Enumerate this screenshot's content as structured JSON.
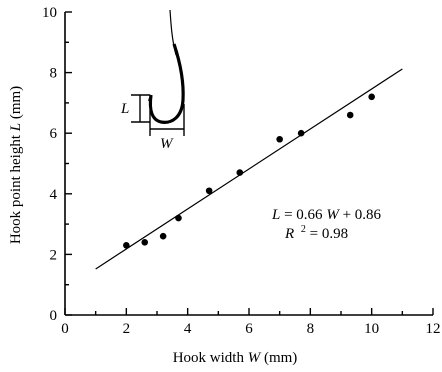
{
  "chart_data": {
    "type": "scatter",
    "xlabel": {
      "prefix": "Hook width ",
      "var": "W",
      "suffix": "  (mm)"
    },
    "ylabel": {
      "prefix": "Hook point height ",
      "var": "L",
      "suffix": "  (mm)"
    },
    "xlim": [
      0,
      12
    ],
    "ylim": [
      0,
      10
    ],
    "xticks": [
      0,
      2,
      4,
      6,
      8,
      10,
      12
    ],
    "yticks": [
      0,
      2,
      4,
      6,
      8,
      10
    ],
    "xtick_labels": [
      "0",
      "2",
      "4",
      "6",
      "8",
      "10",
      "12"
    ],
    "ytick_labels": [
      "0",
      "2",
      "4",
      "6",
      "8",
      "10"
    ],
    "grid": false,
    "points": [
      {
        "x": 2.0,
        "y": 2.3
      },
      {
        "x": 2.6,
        "y": 2.4
      },
      {
        "x": 3.2,
        "y": 2.6
      },
      {
        "x": 3.7,
        "y": 3.2
      },
      {
        "x": 4.7,
        "y": 4.1
      },
      {
        "x": 5.7,
        "y": 4.7
      },
      {
        "x": 7.0,
        "y": 5.8
      },
      {
        "x": 7.7,
        "y": 6.0
      },
      {
        "x": 9.3,
        "y": 6.6
      },
      {
        "x": 10.0,
        "y": 7.2
      }
    ],
    "fit": {
      "slope": 0.66,
      "intercept": 0.86,
      "x_range": [
        1.0,
        11.0
      ]
    },
    "annotation": {
      "eq_lhs": "L",
      "eq_mid": " = 0.66",
      "eq_var": "W",
      "eq_rhs": "  + 0.86",
      "r2_var": "R",
      "r2_sup": "2",
      "r2_rhs": " = 0.98"
    },
    "inset": {
      "label_L": "L",
      "label_W": "W"
    }
  }
}
